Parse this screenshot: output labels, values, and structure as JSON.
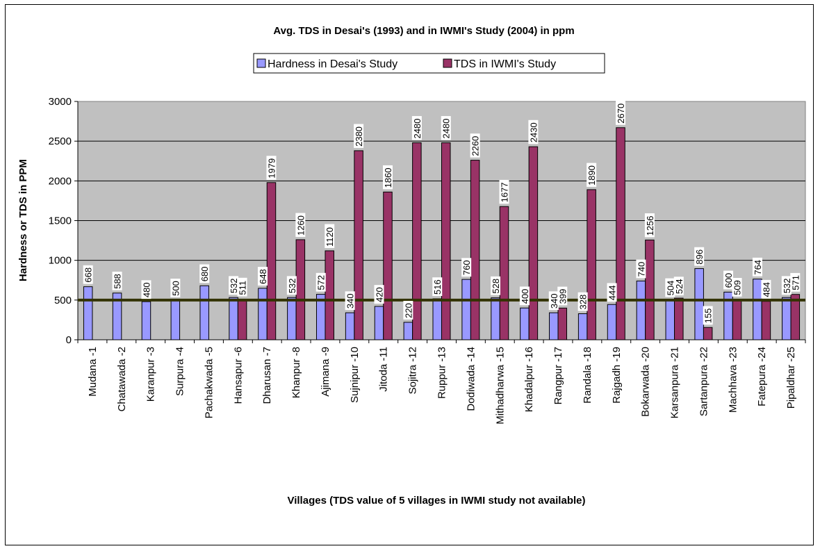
{
  "chart_data": {
    "type": "bar",
    "title": "Avg. TDS in Desai's (1993) and  in IWMI's Study (2004) in ppm",
    "xlabel": "Villages (TDS value of 5 villages in IWMI study not available)",
    "ylabel": "Hardness or TDS in PPM",
    "ylim": [
      0,
      3000
    ],
    "yticks": [
      0,
      500,
      1000,
      1500,
      2000,
      2500,
      3000
    ],
    "grid": true,
    "legend_position": "top",
    "reference_line": {
      "value": 500,
      "color": "#333300"
    },
    "categories": [
      "Mudana -1",
      "Chatawada -2",
      "Karanpur -3",
      "Surpura -4",
      "Pachakwada -5",
      "Hansapur -6",
      "Dharusan -7",
      "Khanpur -8",
      "Ajimana -9",
      "Sujnipur -10",
      "Jitoda -11",
      "Sojitra -12",
      "Ruppur -13",
      "Dodiwada -14",
      "Mithadharwa -15",
      "Khadalpur -16",
      "Rangpur -17",
      "Randala -18",
      "Rajgadh -19",
      "Bokarwada -20",
      "Karsanpura -21",
      "Sartanpura -22",
      "Machhava -23",
      "Fatepura -24",
      "Pipaldhar -25"
    ],
    "series": [
      {
        "name": "Hardness in Desai's Study",
        "color": "#9999ff",
        "values": [
          668,
          588,
          480,
          500,
          680,
          532,
          648,
          532,
          572,
          340,
          420,
          220,
          516,
          760,
          528,
          400,
          340,
          328,
          444,
          740,
          504,
          896,
          600,
          764,
          532
        ]
      },
      {
        "name": "TDS in IWMI's Study",
        "color": "#993366",
        "values": [
          null,
          null,
          null,
          null,
          null,
          511,
          1979,
          1260,
          1120,
          2380,
          1860,
          2480,
          2480,
          2260,
          1677,
          2430,
          399,
          1890,
          2670,
          1256,
          524,
          155,
          509,
          484,
          571
        ]
      }
    ]
  }
}
